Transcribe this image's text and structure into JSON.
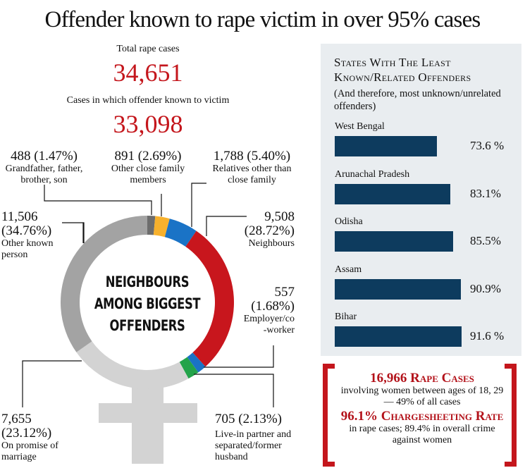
{
  "title": "Offender known to rape victim in over 95% cases",
  "summary": {
    "total_label": "Total rape cases",
    "total_value": "34,651",
    "known_label": "Cases in which offender known to victim",
    "known_value": "33,098"
  },
  "chart_data": [
    {
      "type": "pie",
      "variant": "donut",
      "center_text": [
        "NEIGHBOURS",
        "AMONG BIGGEST",
        "OFFENDERS"
      ],
      "slices": [
        {
          "count": 488,
          "count_label": "488",
          "percent": "1.47%",
          "label": "Grandfather, father, brother, son",
          "color": "#6d6d6d"
        },
        {
          "count": 891,
          "count_label": "891",
          "percent": "2.69%",
          "label": "Other close family members",
          "color": "#f7b12d"
        },
        {
          "count": 1788,
          "count_label": "1,788",
          "percent": "5.40%",
          "label": "Relatives other than close family",
          "color": "#1a73c6"
        },
        {
          "count": 9508,
          "count_label": "9,508",
          "percent": "28.72%",
          "label": "Neighbours",
          "color": "#c8161d"
        },
        {
          "count": 557,
          "count_label": "557",
          "percent": "1.68%",
          "label": "Employer/co -worker",
          "color": "#1a73c6"
        },
        {
          "count": 705,
          "count_label": "705",
          "percent": "2.13%",
          "label": "Live-in partner and separated/former husband",
          "color": "#23a34a"
        },
        {
          "count": 7655,
          "count_label": "7,655",
          "percent": "23.12%",
          "label": "On promise of marriage",
          "color": "#d3d3d3"
        },
        {
          "count": 11506,
          "count_label": "11,506",
          "percent": "34.76%",
          "label": "Other known person",
          "color": "#a3a3a3"
        }
      ]
    },
    {
      "type": "bar",
      "orientation": "horizontal",
      "title": "States With The Least Known/Related Offenders",
      "subtitle": "(And therefore, most unknown/unrelated offenders)",
      "categories": [
        "West Bengal",
        "Arunachal Pradesh",
        "Odisha",
        "Assam",
        "Bihar"
      ],
      "values": [
        73.6,
        83.1,
        85.5,
        90.9,
        91.6
      ],
      "value_labels": [
        "73.6 %",
        "83.1%",
        "85.5%",
        "90.9%",
        "91.6 %"
      ],
      "color": "#0d3b5e"
    }
  ],
  "callout": {
    "line1_highlight": "16,966 Rape Cases",
    "line1_text": "involving women between ages of 18, 29 — 49% of all cases",
    "line2_highlight": "96.1% Chargesheeting Rate",
    "line2_text": "in rape cases; 89.4% in overall crime against women"
  },
  "colors": {
    "accent": "#c4161c",
    "bar": "#0d3b5e",
    "panel": "#e9edf0"
  }
}
